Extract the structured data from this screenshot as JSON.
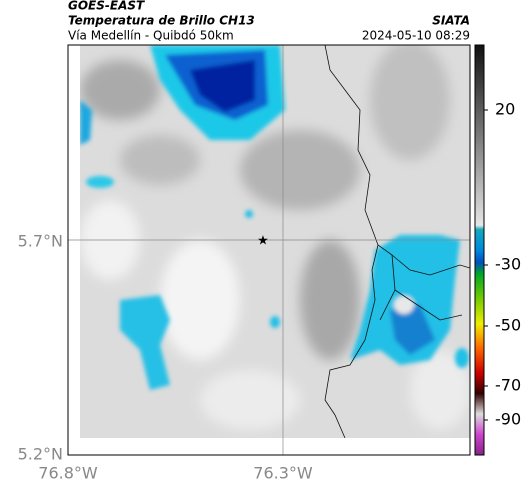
{
  "header": {
    "source": "GOES-EAST",
    "title": "Temperatura de Brillo CH13",
    "subtitle": "Vía Medellín - Quibdó 50km",
    "agency": "SIATA",
    "timestamp": "2024-05-10 08:29"
  },
  "map": {
    "lat_ticks": [
      "5.7°N",
      "5.2°N"
    ],
    "lon_ticks": [
      "76.8°W",
      "76.3°W"
    ]
  },
  "colorbar": {
    "ticks": [
      20,
      -30,
      -50,
      -70,
      -90
    ]
  }
}
